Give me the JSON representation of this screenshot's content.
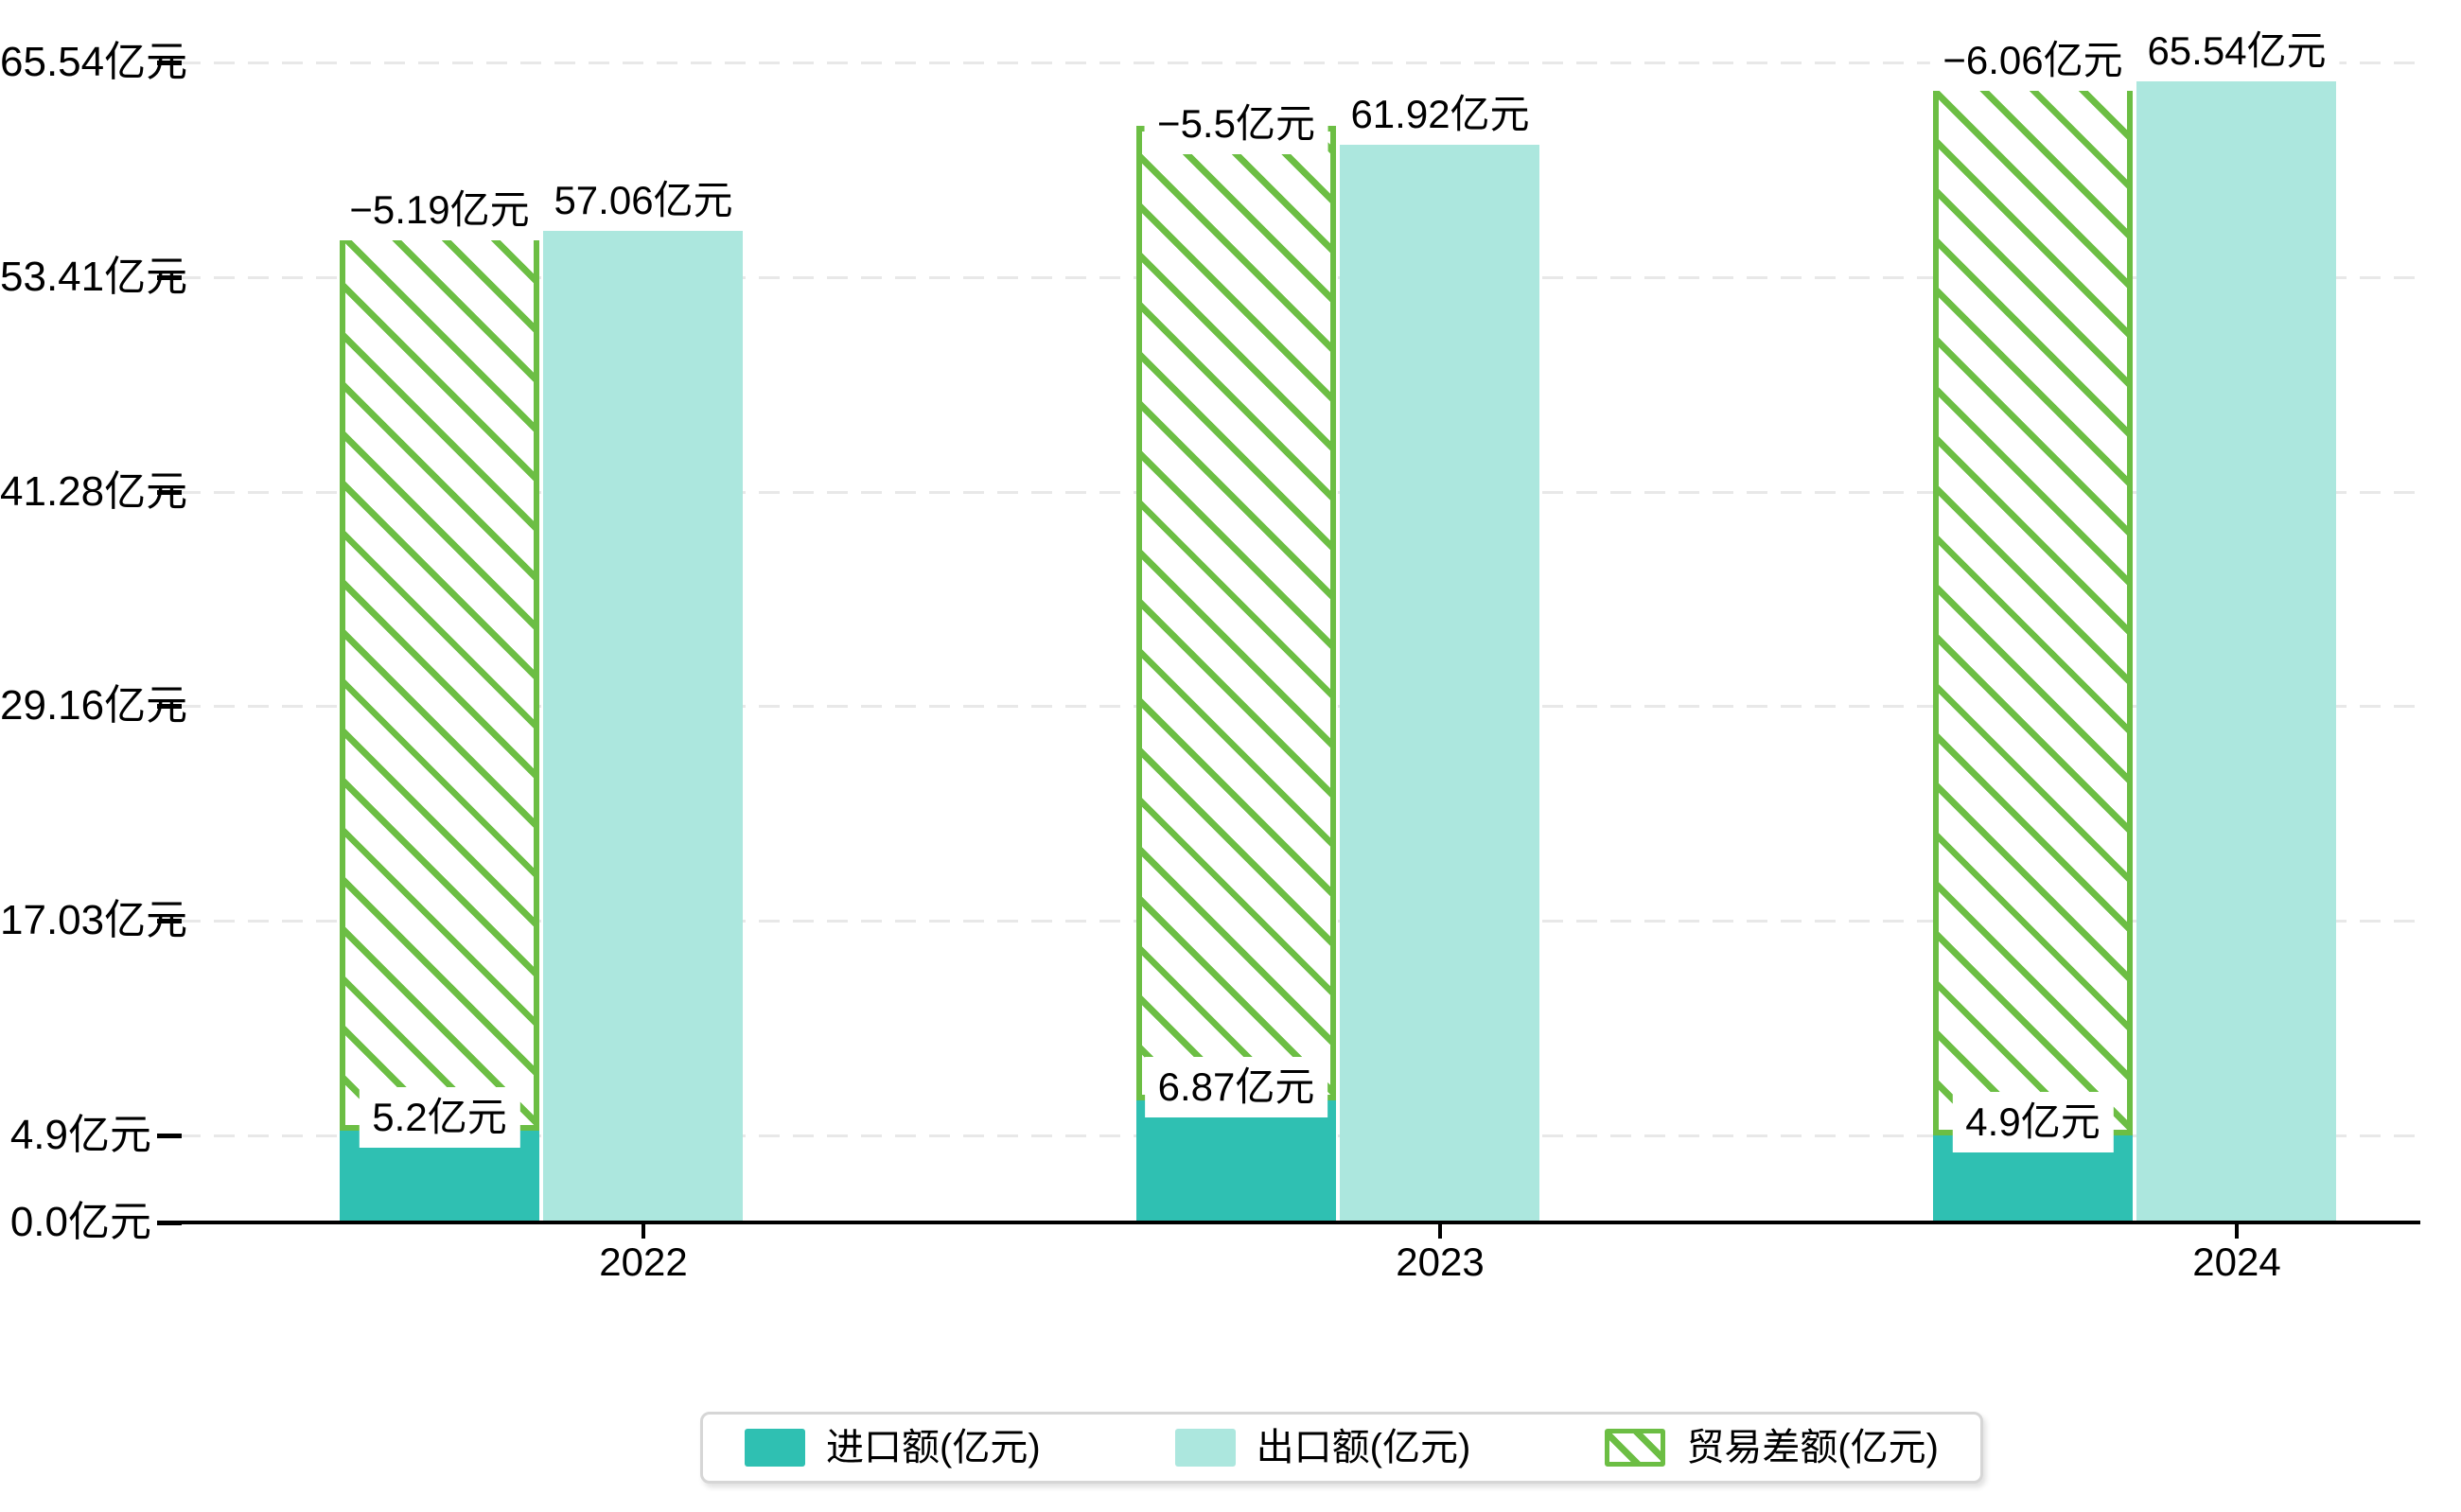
{
  "chart_data": {
    "type": "bar",
    "title": "",
    "categories": [
      "2022",
      "2023",
      "2024"
    ],
    "series": [
      {
        "name": "进口额(亿元)",
        "role": "import",
        "values": [
          5.2,
          6.87,
          4.9
        ],
        "data_labels": [
          "5.2亿元",
          "6.87亿元",
          "4.9亿元"
        ],
        "color": "#2fc0b2",
        "style": "solid"
      },
      {
        "name": "出口额(亿元)",
        "role": "export",
        "values": [
          57.06,
          61.92,
          65.54
        ],
        "data_labels": [
          "57.06亿元",
          "61.92亿元",
          "65.54亿元"
        ],
        "color": "#ace7de",
        "style": "solid"
      },
      {
        "name": "贸易差额(亿元)",
        "role": "trade-balance",
        "values": [
          -5.19,
          -5.5,
          -6.06
        ],
        "data_labels": [
          "−5.19亿元",
          "−5.5亿元",
          "−6.06亿元"
        ],
        "color": "#6cbe44",
        "style": "hatch"
      }
    ],
    "y_axis": {
      "tick_labels": [
        "0.0亿元",
        "4.9亿元",
        "17.03亿元",
        "29.16亿元",
        "41.28亿元",
        "53.41亿元",
        "65.54亿元"
      ],
      "tick_values": [
        0,
        4.9,
        17.03,
        29.16,
        41.28,
        53.41,
        65.54
      ],
      "range": [
        0,
        69.0
      ]
    },
    "x_axis": {
      "tick_labels": [
        "2022",
        "2023",
        "2024"
      ]
    },
    "grid": "dashed-horizontal",
    "legend_position": "bottom-center"
  },
  "colors": {
    "import_bar": "#2fc0b2",
    "export_bar": "#ace7de",
    "balance_hatch": "#6cbe44",
    "gridline": "#e8e8e8",
    "axis": "#000000",
    "text": "#000000",
    "label_box_bg": "#ffffff",
    "legend_border": "#d6d6d6",
    "background": "#ffffff"
  }
}
